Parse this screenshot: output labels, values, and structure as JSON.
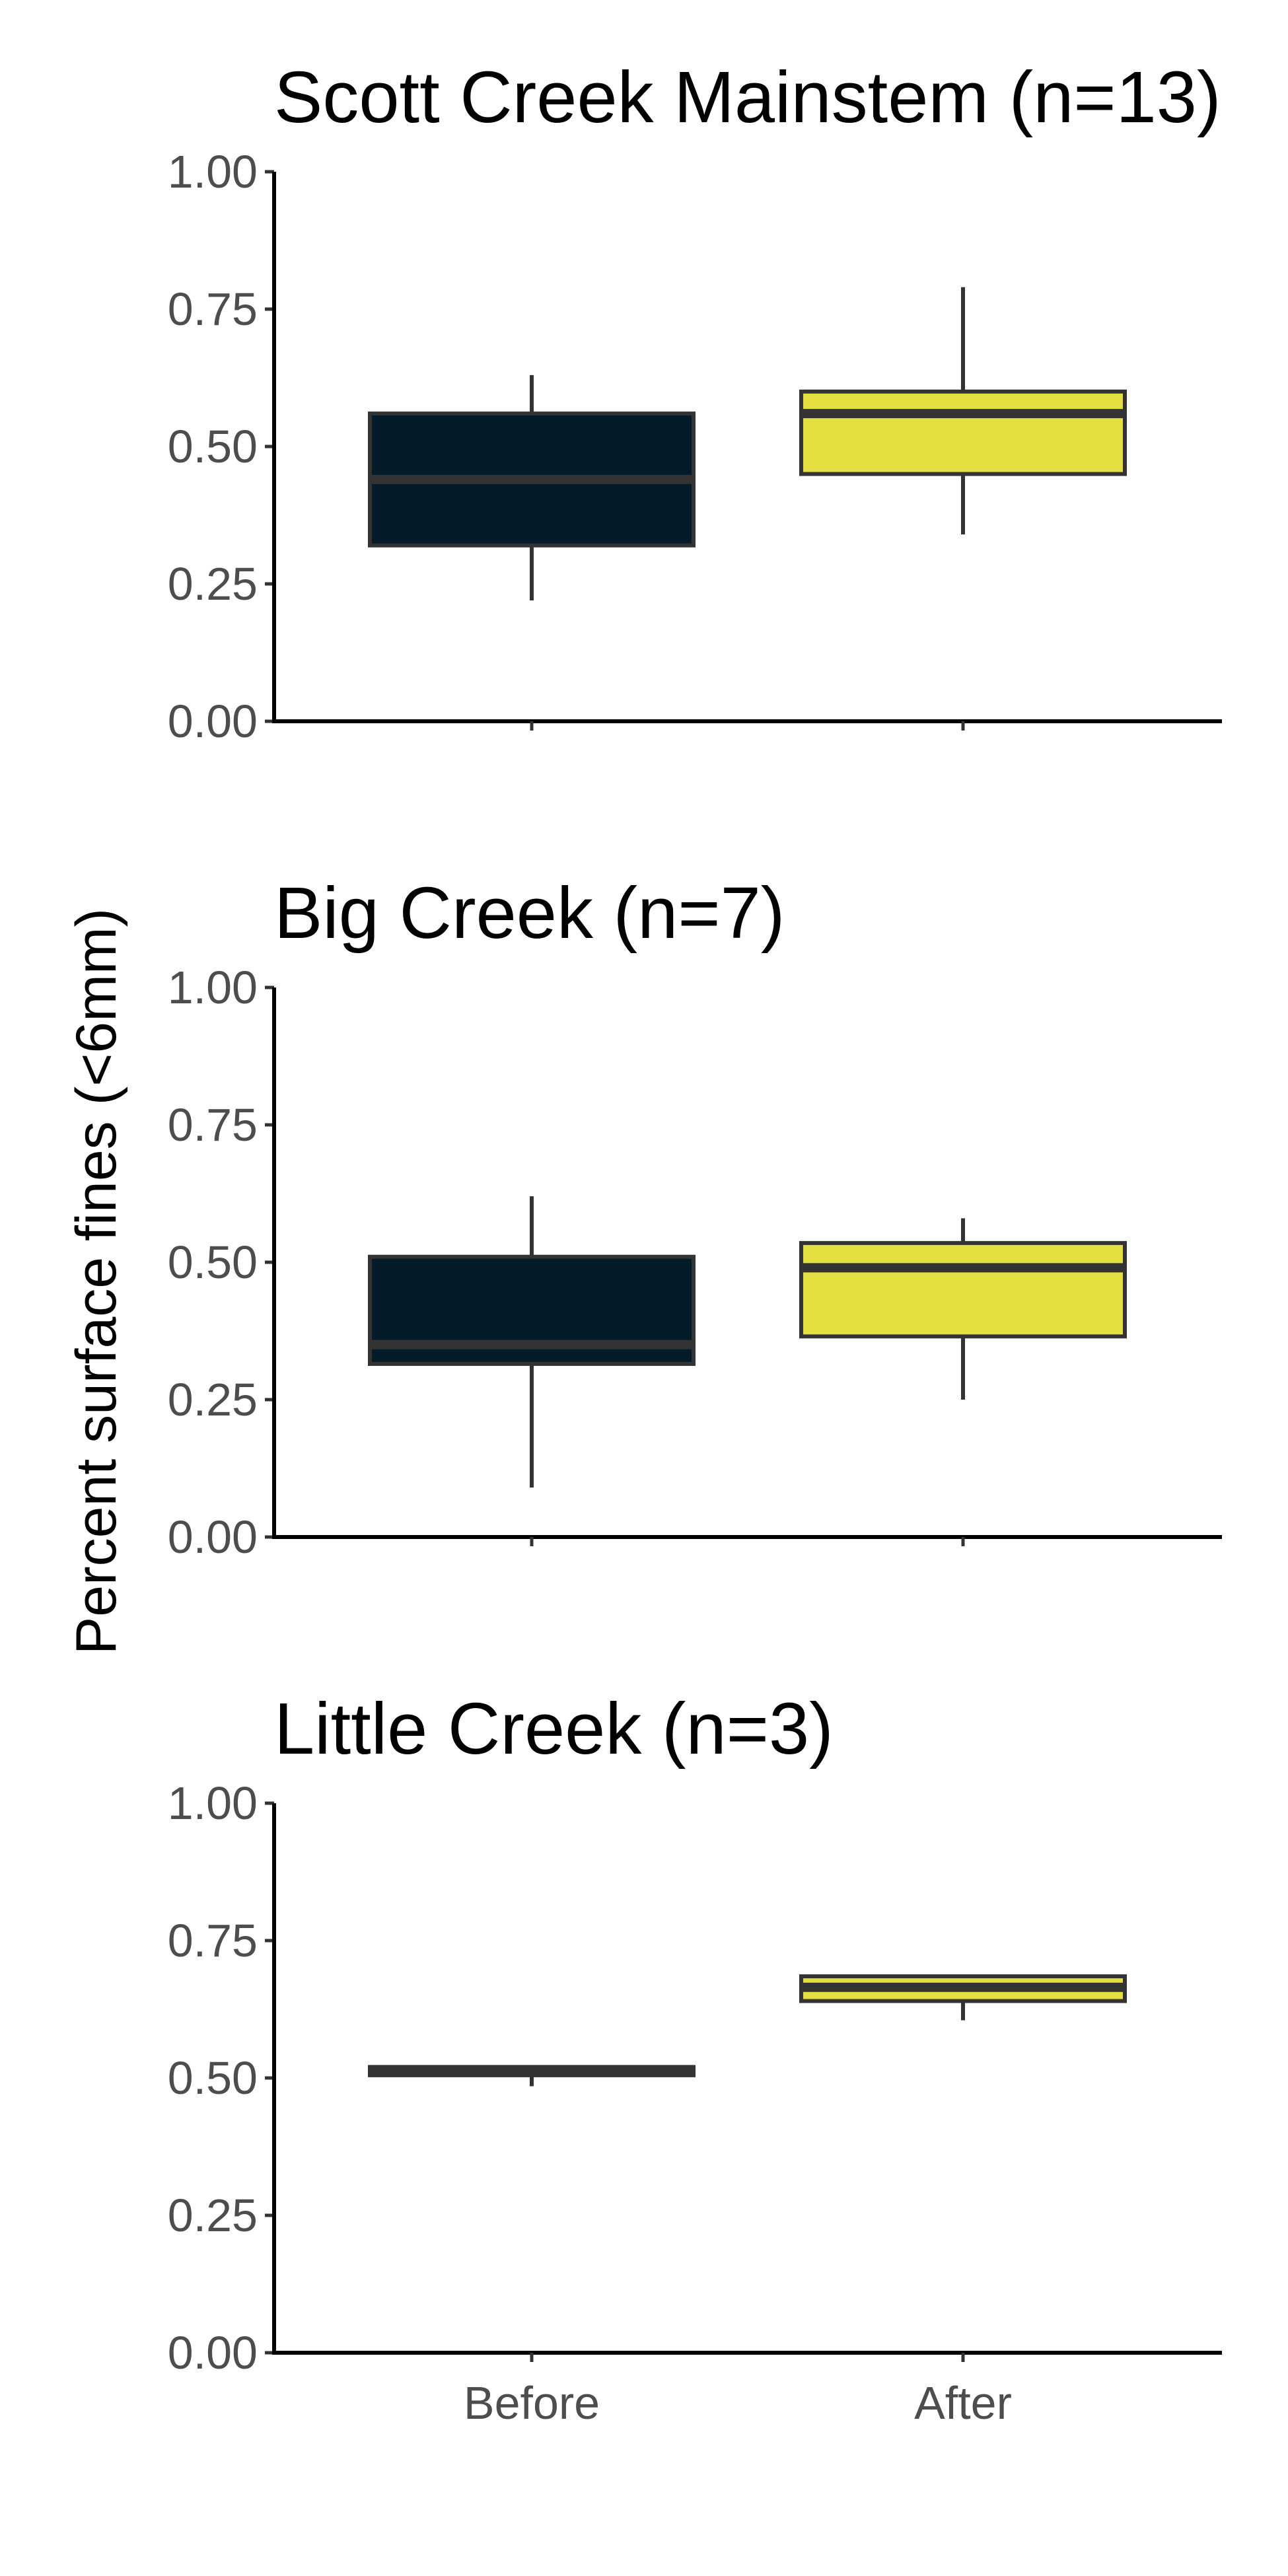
{
  "chart_data": {
    "type": "box",
    "ylabel": "Percent surface fines (<6mm)",
    "y_ticks": [
      "0.00",
      "0.25",
      "0.50",
      "0.75",
      "1.00"
    ],
    "ylim": [
      0,
      1
    ],
    "categories": [
      "Before",
      "After"
    ],
    "fill_colors": {
      "Before": "#041c2a",
      "After": "#e3df40"
    },
    "line_color": "#333333",
    "grid": false,
    "legend": "none",
    "panels": [
      {
        "title": "Scott Creek Mainstem (n=13)",
        "boxes": [
          {
            "category": "Before",
            "whisker_low": 0.22,
            "q1": 0.32,
            "median": 0.44,
            "q3": 0.56,
            "whisker_high": 0.63
          },
          {
            "category": "After",
            "whisker_low": 0.34,
            "q1": 0.45,
            "median": 0.56,
            "q3": 0.6,
            "whisker_high": 0.79
          }
        ]
      },
      {
        "title": "Big Creek (n=7)",
        "boxes": [
          {
            "category": "Before",
            "whisker_low": 0.09,
            "q1": 0.315,
            "median": 0.35,
            "q3": 0.51,
            "whisker_high": 0.62
          },
          {
            "category": "After",
            "whisker_low": 0.25,
            "q1": 0.365,
            "median": 0.49,
            "q3": 0.535,
            "whisker_high": 0.58
          }
        ]
      },
      {
        "title": "Little Creek (n=3)",
        "boxes": [
          {
            "category": "Before",
            "whisker_low": 0.485,
            "q1": 0.505,
            "median": 0.51,
            "q3": 0.52,
            "whisker_high": 0.52
          },
          {
            "category": "After",
            "whisker_low": 0.605,
            "q1": 0.64,
            "median": 0.665,
            "q3": 0.685,
            "whisker_high": 0.685
          }
        ]
      }
    ]
  }
}
